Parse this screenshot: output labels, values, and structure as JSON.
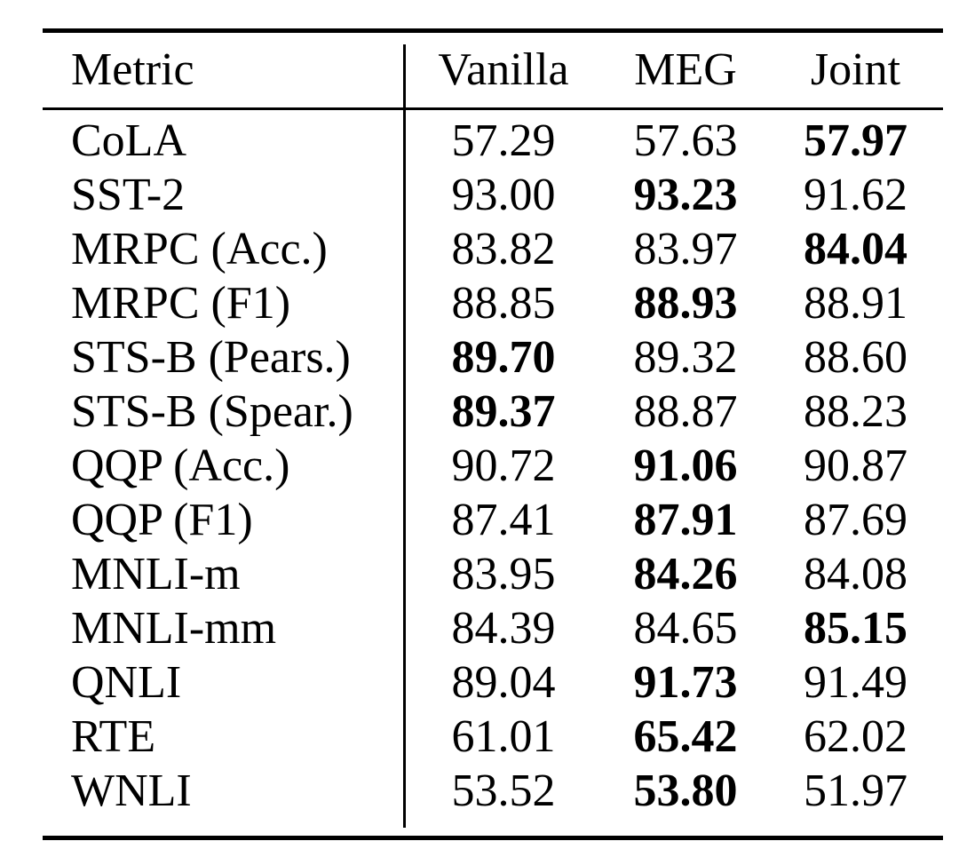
{
  "chart_data": {
    "type": "table",
    "columns": [
      "Metric",
      "Vanilla",
      "MEG",
      "Joint"
    ],
    "rows": [
      {
        "metric": "CoLA",
        "vanilla": "57.29",
        "meg": "57.63",
        "joint": "57.97",
        "bold": "joint"
      },
      {
        "metric": "SST-2",
        "vanilla": "93.00",
        "meg": "93.23",
        "joint": "91.62",
        "bold": "meg"
      },
      {
        "metric": "MRPC (Acc.)",
        "vanilla": "83.82",
        "meg": "83.97",
        "joint": "84.04",
        "bold": "joint"
      },
      {
        "metric": "MRPC (F1)",
        "vanilla": "88.85",
        "meg": "88.93",
        "joint": "88.91",
        "bold": "meg"
      },
      {
        "metric": "STS-B (Pears.)",
        "vanilla": "89.70",
        "meg": "89.32",
        "joint": "88.60",
        "bold": "vanilla"
      },
      {
        "metric": "STS-B (Spear.)",
        "vanilla": "89.37",
        "meg": "88.87",
        "joint": "88.23",
        "bold": "vanilla"
      },
      {
        "metric": "QQP (Acc.)",
        "vanilla": "90.72",
        "meg": "91.06",
        "joint": "90.87",
        "bold": "meg"
      },
      {
        "metric": "QQP (F1)",
        "vanilla": "87.41",
        "meg": "87.91",
        "joint": "87.69",
        "bold": "meg"
      },
      {
        "metric": "MNLI-m",
        "vanilla": "83.95",
        "meg": "84.26",
        "joint": "84.08",
        "bold": "meg"
      },
      {
        "metric": "MNLI-mm",
        "vanilla": "84.39",
        "meg": "84.65",
        "joint": "85.15",
        "bold": "joint"
      },
      {
        "metric": "QNLI",
        "vanilla": "89.04",
        "meg": "91.73",
        "joint": "91.49",
        "bold": "meg"
      },
      {
        "metric": "RTE",
        "vanilla": "61.01",
        "meg": "65.42",
        "joint": "62.02",
        "bold": "meg"
      },
      {
        "metric": "WNLI",
        "vanilla": "53.52",
        "meg": "53.80",
        "joint": "51.97",
        "bold": "meg"
      }
    ]
  },
  "colors": {
    "text": "#000000",
    "background": "#ffffff",
    "rule": "#000000"
  }
}
